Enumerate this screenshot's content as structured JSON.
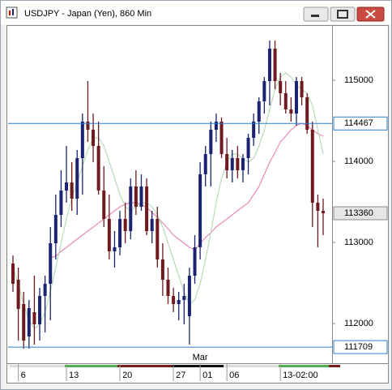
{
  "chart_data": {
    "type": "candlestick",
    "title": "USDJPY - Japan (Yen), 860 Min",
    "categories": [
      null,
      "6",
      null,
      null,
      null,
      null,
      null,
      null,
      null,
      null,
      "13",
      null,
      null,
      null,
      null,
      null,
      null,
      null,
      null,
      null,
      "20",
      null,
      null,
      null,
      null,
      null,
      null,
      null,
      null,
      null,
      "27",
      null,
      null,
      null,
      null,
      "01",
      null,
      null,
      null,
      null,
      "06",
      null,
      null,
      null,
      null,
      null,
      null,
      null,
      null,
      null,
      "13-02:00",
      null,
      null,
      null,
      null,
      null,
      null,
      null,
      null
    ],
    "secondary_categories": [
      null,
      null,
      null,
      null,
      null,
      null,
      null,
      null,
      null,
      null,
      null,
      null,
      null,
      null,
      null,
      null,
      null,
      null,
      null,
      null,
      null,
      null,
      null,
      null,
      null,
      null,
      null,
      null,
      null,
      null,
      null,
      null,
      null,
      null,
      null,
      "Mar",
      null,
      null,
      null,
      null,
      null,
      null,
      null,
      null,
      null,
      null,
      null,
      null,
      null,
      null,
      null,
      null,
      null,
      null,
      null,
      null,
      null,
      null,
      null
    ],
    "open": [
      112740,
      112540,
      112240,
      111840,
      112140,
      111990,
      112340,
      112490,
      112990,
      113340,
      113640,
      113740,
      113540,
      114040,
      114490,
      114390,
      114190,
      113640,
      113290,
      112890,
      112940,
      113290,
      113140,
      113690,
      113440,
      113690,
      113140,
      113290,
      112790,
      112540,
      112340,
      112240,
      112290,
      112090,
      112590,
      112940,
      113840,
      114090,
      114390,
      114490,
      114090,
      113890,
      114040,
      113890,
      114040,
      114290,
      114490,
      114740,
      114990,
      115390,
      114990,
      114840,
      114640,
      114590,
      114990,
      114790,
      114390,
      113490,
      113390
    ],
    "high": [
      112840,
      112690,
      112390,
      112290,
      112590,
      112440,
      112590,
      113190,
      113590,
      113890,
      114190,
      113990,
      114140,
      114590,
      114990,
      114590,
      114490,
      113940,
      113590,
      113140,
      113390,
      113490,
      113790,
      113890,
      113840,
      113790,
      113390,
      113440,
      112990,
      112690,
      112440,
      112390,
      112490,
      112690,
      113090,
      113990,
      114190,
      114490,
      114590,
      114540,
      114290,
      114140,
      114190,
      114090,
      114340,
      114590,
      114790,
      115040,
      115490,
      115490,
      115090,
      114990,
      114790,
      115040,
      115040,
      114840,
      114490,
      113590,
      113540
    ],
    "low": [
      112390,
      111790,
      111690,
      111690,
      111740,
      111790,
      111890,
      112040,
      112790,
      113190,
      113490,
      113390,
      113340,
      113590,
      114240,
      113990,
      113590,
      113190,
      112790,
      112690,
      112840,
      112990,
      113040,
      113340,
      113390,
      113090,
      112990,
      112690,
      112340,
      112240,
      112140,
      112040,
      111990,
      111740,
      112490,
      112790,
      113690,
      113690,
      114240,
      114040,
      113790,
      113740,
      113790,
      113740,
      113840,
      114190,
      114340,
      114590,
      114690,
      114890,
      114690,
      114590,
      114490,
      114440,
      114690,
      114340,
      113190,
      112940,
      113090
    ],
    "close": [
      112490,
      112180,
      111790,
      112190,
      111990,
      112340,
      112490,
      112990,
      113340,
      113640,
      113740,
      113540,
      114040,
      114490,
      114390,
      114190,
      113640,
      113290,
      112890,
      112940,
      113290,
      113140,
      113690,
      113440,
      113690,
      113140,
      113290,
      112790,
      112540,
      112340,
      112240,
      112290,
      112340,
      112590,
      112940,
      113840,
      114090,
      114390,
      114490,
      114090,
      113890,
      114040,
      113890,
      114040,
      114290,
      114490,
      114740,
      114990,
      115390,
      114990,
      114840,
      114640,
      114590,
      114990,
      114790,
      114390,
      113490,
      113390,
      113360
    ],
    "up_color": "#1b2470",
    "down_color": "#6e1a1e",
    "overlays": [
      {
        "color": "#e58ab8",
        "values": [
          null,
          null,
          null,
          null,
          null,
          null,
          null,
          112810,
          112830,
          112890,
          112940,
          112990,
          113040,
          113090,
          113140,
          113190,
          113240,
          113290,
          113340,
          113390,
          113440,
          113470,
          113490,
          113490,
          113470,
          113430,
          113370,
          113310,
          113240,
          113170,
          113090,
          113040,
          112990,
          112940,
          112910,
          112990,
          113060,
          113120,
          113190,
          113240,
          113290,
          113340,
          113390,
          113440,
          113490,
          113590,
          113690,
          113840,
          113990,
          114110,
          114240,
          114310,
          114390,
          114440,
          114470,
          114440,
          114390,
          114340,
          114310
        ]
      },
      {
        "color": "#b9d9b9",
        "values": [
          112690,
          112490,
          112240,
          112040,
          111940,
          111990,
          112140,
          112390,
          112690,
          112990,
          113290,
          113540,
          113740,
          113940,
          114140,
          114290,
          114290,
          114190,
          113990,
          113790,
          113590,
          113440,
          113390,
          113440,
          113490,
          113490,
          113440,
          113340,
          113190,
          112990,
          112790,
          112590,
          112390,
          112240,
          112290,
          112490,
          112790,
          113120,
          113490,
          113790,
          113990,
          114090,
          114090,
          114040,
          113990,
          114040,
          114190,
          114390,
          114640,
          114890,
          115040,
          115090,
          115040,
          114940,
          114890,
          114840,
          114690,
          114390,
          114090
        ]
      }
    ],
    "levels": [
      {
        "value": 114467,
        "color": "#2a7fd4"
      },
      {
        "value": 111709,
        "color": "#2a7fd4"
      }
    ],
    "ylim": [
      111690,
      115660
    ],
    "yticks": [
      112000,
      113000,
      114000,
      115000
    ]
  }
}
